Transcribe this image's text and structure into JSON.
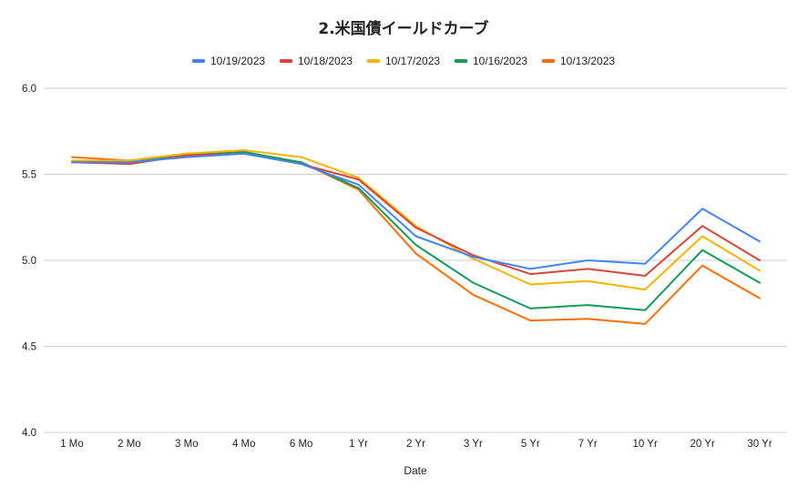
{
  "chart_data": {
    "type": "line",
    "title": "2.米国債イールドカーブ",
    "xlabel": "Date",
    "ylabel": "",
    "categories": [
      "1 Mo",
      "2 Mo",
      "3 Mo",
      "4 Mo",
      "6 Mo",
      "1 Yr",
      "2 Yr",
      "3 Yr",
      "5 Yr",
      "7 Yr",
      "10 Yr",
      "20 Yr",
      "30 Yr"
    ],
    "ylim": [
      4.0,
      6.0
    ],
    "yticks": [
      "4.0",
      "4.5",
      "5.0",
      "5.5",
      "6.0"
    ],
    "grid": true,
    "legend_position": "top-center",
    "series": [
      {
        "name": "10/19/2023",
        "color": "#4285f4",
        "values": [
          5.57,
          5.57,
          5.6,
          5.62,
          5.56,
          5.44,
          5.14,
          5.02,
          4.95,
          5.0,
          4.98,
          5.3,
          5.11
        ]
      },
      {
        "name": "10/18/2023",
        "color": "#db4437",
        "values": [
          5.57,
          5.56,
          5.61,
          5.62,
          5.56,
          5.47,
          5.19,
          5.03,
          4.92,
          4.95,
          4.91,
          5.2,
          5.0
        ]
      },
      {
        "name": "10/17/2023",
        "color": "#f4b400",
        "values": [
          5.58,
          5.58,
          5.62,
          5.64,
          5.6,
          5.48,
          5.2,
          5.01,
          4.86,
          4.88,
          4.83,
          5.14,
          4.94
        ]
      },
      {
        "name": "10/16/2023",
        "color": "#0f9d58",
        "values": [
          5.57,
          5.58,
          5.61,
          5.63,
          5.57,
          5.42,
          5.09,
          4.87,
          4.72,
          4.74,
          4.71,
          5.06,
          4.87
        ]
      },
      {
        "name": "10/13/2023",
        "color": "#ff6d01",
        "values": [
          5.6,
          5.58,
          5.62,
          5.62,
          5.57,
          5.41,
          5.04,
          4.8,
          4.65,
          4.66,
          4.63,
          4.97,
          4.78
        ]
      }
    ]
  }
}
